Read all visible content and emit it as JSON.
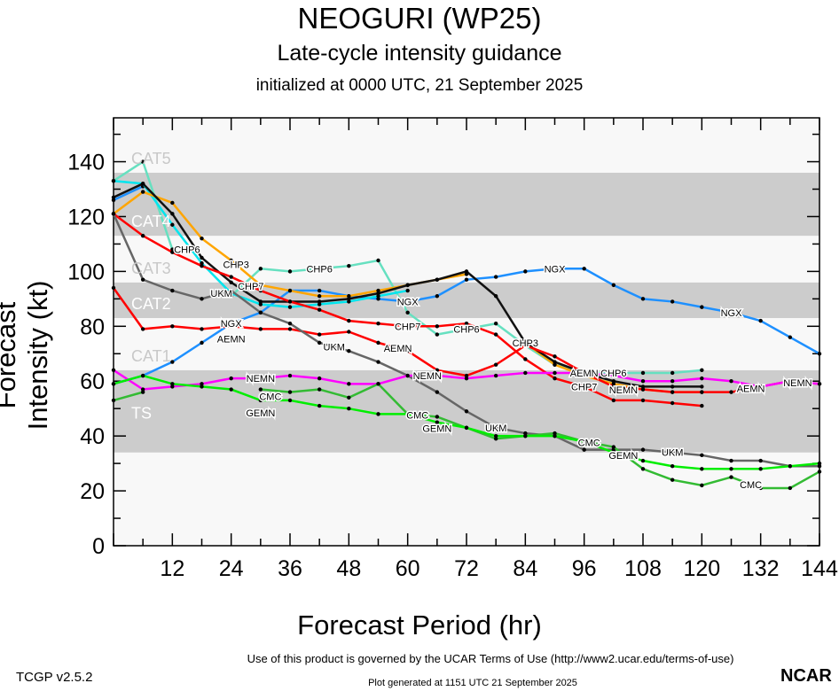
{
  "header": {
    "title": "NEOGURI (WP25)",
    "subtitle": "Late-cycle intensity guidance",
    "init": "initialized at 0000 UTC, 21 September 2025"
  },
  "footer": {
    "version": "TCGP v2.5.2",
    "terms": "Use of this product is governed by the UCAR Terms of Use (http://www2.ucar.edu/terms-of-use)",
    "generated": "Plot generated at 1151 UTC   21 September 2025",
    "logo": "NCAR"
  },
  "chart_data": {
    "type": "line",
    "xlabel": "Forecast Period (hr)",
    "ylabel": "Forecast Intensity (kt)",
    "xlim": [
      0,
      144
    ],
    "ylim": [
      0,
      156
    ],
    "xticks": [
      12,
      24,
      36,
      48,
      60,
      72,
      84,
      96,
      108,
      120,
      132,
      144
    ],
    "yticks": [
      0,
      20,
      40,
      60,
      80,
      100,
      120,
      140
    ],
    "bands": [
      {
        "label": "TS",
        "range": [
          34,
          64
        ],
        "fill": "#cccccc"
      },
      {
        "label": "CAT1",
        "range": [
          64,
          83
        ],
        "fill": "#f8f8f8"
      },
      {
        "label": "CAT2",
        "range": [
          83,
          96
        ],
        "fill": "#cccccc"
      },
      {
        "label": "CAT3",
        "range": [
          96,
          113
        ],
        "fill": "#f8f8f8"
      },
      {
        "label": "CAT4",
        "range": [
          113,
          136
        ],
        "fill": "#cccccc"
      },
      {
        "label": "CAT5",
        "range": [
          136,
          156
        ],
        "fill": "#f8f8f8"
      }
    ],
    "x": [
      0,
      6,
      12,
      18,
      24,
      30,
      36,
      42,
      48,
      54,
      60,
      66,
      72,
      78,
      84,
      90,
      96,
      102,
      108,
      114,
      120,
      126,
      132,
      138,
      144
    ],
    "series": [
      {
        "name": "NGX",
        "color": "#1e90ff",
        "label_at": [
          24,
          60,
          90,
          126
        ],
        "values": [
          59,
          62,
          67,
          74,
          81,
          85,
          93,
          93,
          91,
          90,
          89,
          91,
          97,
          98,
          100,
          101,
          101,
          95,
          90,
          89,
          87,
          85,
          82,
          76,
          70
        ]
      },
      {
        "name": "",
        "color": "#1e90ff",
        "label_at": [],
        "values": [
          126,
          131,
          null,
          null,
          null,
          null,
          null,
          null,
          null,
          null,
          null,
          null,
          null,
          null,
          null,
          null,
          null,
          null,
          null,
          null,
          null,
          null,
          null,
          null,
          null
        ]
      },
      {
        "name": "CHP6",
        "color": "#66e0c0",
        "label_at": [
          15,
          42,
          72,
          102
        ],
        "values": [
          133,
          140,
          108,
          null,
          91,
          101,
          100,
          101,
          102,
          104,
          85,
          77,
          79,
          81,
          73,
          66,
          63,
          63,
          63,
          63,
          64,
          null,
          null,
          null,
          null
        ]
      },
      {
        "name": "",
        "color": "#00e5ee",
        "label_at": [],
        "values": [
          133,
          132,
          117,
          103,
          92,
          88,
          87,
          88,
          89,
          91,
          93,
          null,
          null,
          null,
          null,
          null,
          null,
          null,
          null,
          null,
          null,
          null,
          null,
          null,
          null
        ]
      },
      {
        "name": "CHP3",
        "color": "#ffa500",
        "label_at": [
          25,
          84
        ],
        "values": [
          121,
          129,
          125,
          112,
          104,
          95,
          93,
          91,
          91,
          93,
          95,
          97,
          99,
          null,
          74,
          66,
          62,
          59,
          57,
          56,
          56,
          null,
          null,
          null,
          null
        ]
      },
      {
        "name": "",
        "color": "#111111",
        "label_at": [],
        "values": [
          127,
          132,
          121,
          105,
          96,
          89,
          89,
          89,
          90,
          92,
          95,
          97,
          100,
          91,
          74,
          67,
          63,
          60,
          58,
          58,
          58,
          null,
          null,
          null,
          null
        ]
      },
      {
        "name": "CHP7",
        "color": "#ff0000",
        "label_at": [
          28,
          60,
          96
        ],
        "values": [
          121,
          113,
          107,
          102,
          98,
          93,
          89,
          86,
          82,
          81,
          80,
          80,
          81,
          77,
          68,
          61,
          58,
          53,
          53,
          52,
          51,
          null,
          null,
          null,
          null
        ]
      },
      {
        "name": "AEMN",
        "color": "#ff0000",
        "label_at": [
          24,
          58,
          96,
          130
        ],
        "values": [
          94,
          79,
          80,
          79,
          80,
          79,
          79,
          77,
          78,
          74,
          71,
          64,
          62,
          66,
          73,
          69,
          63,
          58,
          57,
          56,
          56,
          56,
          58,
          60,
          59
        ]
      },
      {
        "name": "UKM",
        "color": "#666666",
        "label_at": [
          22,
          45,
          78,
          114
        ],
        "values": [
          121,
          97,
          93,
          90,
          93,
          85,
          81,
          74,
          71,
          67,
          62,
          56,
          49,
          43,
          41,
          40,
          35,
          35,
          35,
          34,
          33,
          31,
          31,
          29,
          29
        ]
      },
      {
        "name": "NEMN",
        "color": "#ff00ff",
        "label_at": [
          30,
          64,
          104,
          141
        ],
        "values": [
          64,
          57,
          58,
          59,
          61,
          61,
          62,
          61,
          59,
          59,
          62,
          62,
          61,
          62,
          63,
          63,
          63,
          62,
          60,
          60,
          61,
          60,
          58,
          60,
          59
        ]
      },
      {
        "name": "CMC",
        "color": "#33bb33",
        "label_at": [
          32,
          62,
          97,
          130
        ],
        "values": [
          53,
          56,
          null,
          null,
          null,
          57,
          56,
          57,
          54,
          59,
          48,
          47,
          43,
          39,
          40,
          41,
          38,
          36,
          28,
          24,
          22,
          25,
          21,
          21,
          27
        ]
      },
      {
        "name": "GEMN",
        "color": "#00ee00",
        "label_at": [
          30,
          66,
          104
        ],
        "values": [
          59,
          62,
          59,
          58,
          57,
          53,
          53,
          51,
          50,
          48,
          48,
          45,
          43,
          40,
          40,
          40,
          38,
          34,
          31,
          29,
          28,
          28,
          28,
          29,
          30
        ]
      }
    ]
  }
}
